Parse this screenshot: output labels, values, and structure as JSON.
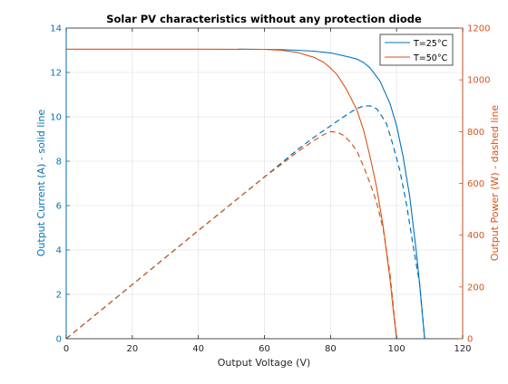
{
  "chart_data": {
    "type": "line",
    "title": "Solar PV characteristics without any protection diode",
    "xlabel": "Output Voltage (V)",
    "ylabel_left": "Output Current (A) - solid line",
    "ylabel_right": "Output Power (W) - dashed line",
    "xlim": [
      0,
      120
    ],
    "ylim_left": [
      0,
      14
    ],
    "ylim_right": [
      0,
      1200
    ],
    "xticks": [
      "0",
      "20",
      "40",
      "60",
      "80",
      "100",
      "120"
    ],
    "yticks_left": [
      "0",
      "2",
      "4",
      "6",
      "8",
      "10",
      "12",
      "14"
    ],
    "yticks_right": [
      "0",
      "200",
      "400",
      "600",
      "800",
      "1000",
      "1200"
    ],
    "grid": true,
    "legend_position": "top-right",
    "colors": {
      "t25": "#0072BD",
      "t50": "#D95319",
      "axis_left": "#0072BD",
      "axis_right": "#D95319",
      "grid": "#e6e6e6",
      "text": "#262626"
    },
    "series": [
      {
        "name": "T=25°C",
        "color": "#0072BD",
        "current": {
          "x": [
            52,
            60,
            65,
            70,
            75,
            80,
            85,
            88,
            90,
            92,
            95,
            98,
            100,
            102,
            104,
            106,
            107,
            108.5
          ],
          "y": [
            13.05,
            13.04,
            13.03,
            13.0,
            12.96,
            12.88,
            12.72,
            12.6,
            12.45,
            12.2,
            11.6,
            10.6,
            9.6,
            8.2,
            6.4,
            3.9,
            2.4,
            0
          ]
        },
        "power": {
          "x": [
            0,
            20,
            40,
            60,
            70,
            75,
            80,
            85,
            88,
            90,
            92,
            94,
            95,
            97,
            99,
            101,
            103,
            105,
            107,
            108.5
          ],
          "y": [
            0,
            209,
            418,
            625,
            730,
            778,
            822,
            866,
            890,
            898,
            900,
            888,
            870,
            830,
            745,
            650,
            520,
            360,
            210,
            0
          ]
        }
      },
      {
        "name": "T=50°C",
        "color": "#D95319",
        "current": {
          "x": [
            0,
            20,
            40,
            60,
            65,
            70,
            75,
            78,
            80,
            82,
            85,
            88,
            90,
            92,
            94,
            96,
            98,
            99,
            100
          ],
          "y": [
            13.05,
            13.05,
            13.05,
            13.04,
            13.0,
            12.9,
            12.68,
            12.45,
            12.2,
            11.9,
            11.2,
            10.3,
            9.4,
            8.2,
            6.8,
            5.0,
            2.7,
            1.3,
            0
          ]
        },
        "power": {
          "x": [
            0,
            20,
            40,
            60,
            65,
            70,
            75,
            78,
            80,
            82,
            84,
            86,
            88,
            90,
            92,
            94,
            96,
            98,
            100
          ],
          "y": [
            0,
            209,
            418,
            625,
            672,
            722,
            765,
            789,
            800,
            798,
            785,
            760,
            725,
            665,
            600,
            525,
            420,
            250,
            0
          ]
        }
      }
    ]
  }
}
